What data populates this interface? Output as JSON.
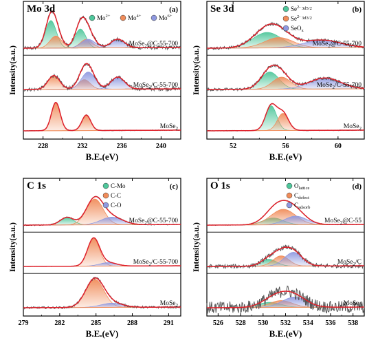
{
  "chart_data": [
    {
      "type": "line",
      "id": "a",
      "title": "Mo 3d",
      "letter": "(a)",
      "xlabel": "B.E.(eV)",
      "ylabel": "Intensity(a.u.)",
      "xlim": [
        226,
        242
      ],
      "xticks": [
        228,
        232,
        236,
        240
      ],
      "legend": [
        {
          "label": "Mo",
          "sup": "2+",
          "sub": "",
          "color": "#4fc79b"
        },
        {
          "label": "Mo",
          "sup": "4+",
          "sub": "",
          "color": "#f08c5a"
        },
        {
          "label": "Mo",
          "sup": "6+",
          "sub": "",
          "color": "#8f99e0"
        }
      ],
      "traces": [
        {
          "label": "MoSe",
          "sub": "2",
          "suffix": "@C-55-700",
          "base": 2.0,
          "noise": 0.05,
          "peaks": [
            {
              "center": 228.8,
              "height": 0.8,
              "width": 0.55,
              "color": "#4fc79b"
            },
            {
              "center": 231.8,
              "height": 0.55,
              "width": 0.55,
              "color": "#4fc79b"
            },
            {
              "center": 229.3,
              "height": 0.35,
              "width": 0.6,
              "color": "#f08c5a"
            },
            {
              "center": 232.4,
              "height": 0.25,
              "width": 0.6,
              "color": "#f08c5a"
            },
            {
              "center": 232.6,
              "height": 0.25,
              "width": 0.7,
              "color": "#8f99e0"
            },
            {
              "center": 235.6,
              "height": 0.25,
              "width": 0.7,
              "color": "#8f99e0"
            }
          ]
        },
        {
          "label": "MoSe",
          "sub": "2",
          "suffix": "/C-55-700",
          "base": 1.0,
          "noise": 0.05,
          "peaks": [
            {
              "center": 229.1,
              "height": 0.4,
              "width": 0.6,
              "color": "#f08c5a"
            },
            {
              "center": 232.2,
              "height": 0.28,
              "width": 0.6,
              "color": "#f08c5a"
            },
            {
              "center": 232.6,
              "height": 0.5,
              "width": 0.7,
              "color": "#8f99e0"
            },
            {
              "center": 235.6,
              "height": 0.35,
              "width": 0.7,
              "color": "#8f99e0"
            }
          ]
        },
        {
          "label": "MoSe",
          "sub": "2",
          "suffix": "",
          "base": 0.0,
          "noise": 0.01,
          "peaks": [
            {
              "center": 229.3,
              "height": 0.82,
              "width": 0.45,
              "color": "#f08c5a"
            },
            {
              "center": 232.4,
              "height": 0.45,
              "width": 0.45,
              "color": "#f08c5a"
            }
          ]
        }
      ]
    },
    {
      "type": "line",
      "id": "b",
      "title": "Se 3d",
      "letter": "(b)",
      "xlabel": "B.E.(eV)",
      "ylabel": "Intensity(a.u.)",
      "xlim": [
        50,
        62
      ],
      "xticks": [
        52,
        56,
        60
      ],
      "legend": [
        {
          "label": "Se",
          "sup": "2-",
          "sub": " 3d5/2",
          "color": "#4fc79b"
        },
        {
          "label": "Se",
          "sup": "2-",
          "sub": " 3d3/2",
          "color": "#f08c5a"
        },
        {
          "label": "SeO",
          "sup": "",
          "sub": "x",
          "color": "#8f99e0"
        }
      ],
      "traces": [
        {
          "label": "MoSe",
          "sub": "2",
          "suffix": "@C-55-700",
          "base": 2.0,
          "noise": 0.04,
          "peaks": [
            {
              "center": 54.6,
              "height": 0.45,
              "width": 1.1,
              "color": "#4fc79b"
            },
            {
              "center": 55.5,
              "height": 0.3,
              "width": 1.1,
              "color": "#f08c5a"
            },
            {
              "center": 58.8,
              "height": 0.22,
              "width": 1.4,
              "color": "#8f99e0"
            }
          ]
        },
        {
          "label": "MoSe",
          "sub": "2",
          "suffix": "/C-55-700",
          "base": 1.0,
          "noise": 0.04,
          "peaks": [
            {
              "center": 54.8,
              "height": 0.5,
              "width": 0.7,
              "color": "#4fc79b"
            },
            {
              "center": 55.7,
              "height": 0.35,
              "width": 0.7,
              "color": "#f08c5a"
            },
            {
              "center": 59.0,
              "height": 0.32,
              "width": 1.2,
              "color": "#8f99e0"
            }
          ]
        },
        {
          "label": "MoSe",
          "sub": "2",
          "suffix": "",
          "base": 0.0,
          "noise": 0.01,
          "peaks": [
            {
              "center": 54.9,
              "height": 0.72,
              "width": 0.42,
              "color": "#4fc79b"
            },
            {
              "center": 55.8,
              "height": 0.5,
              "width": 0.42,
              "color": "#f08c5a"
            }
          ]
        }
      ]
    },
    {
      "type": "line",
      "id": "c",
      "title": "C 1s",
      "letter": "(c)",
      "xlabel": "B.E.(eV)",
      "ylabel": "Intensity(a.u.)",
      "xlim": [
        279,
        292
      ],
      "xticks": [
        279,
        282,
        285,
        288,
        291
      ],
      "legend": [
        {
          "label": "C-Mo",
          "sup": "",
          "sub": "",
          "color": "#4fc79b"
        },
        {
          "label": "C-C",
          "sup": "",
          "sub": "",
          "color": "#f08c5a"
        },
        {
          "label": "C-O",
          "sup": "",
          "sub": "",
          "color": "#8f99e0"
        }
      ],
      "traces": [
        {
          "label": "MoSe",
          "sub": "2",
          "suffix": "@C-55-700",
          "base": 2.0,
          "noise": 0.015,
          "peaks": [
            {
              "center": 282.6,
              "height": 0.22,
              "width": 0.55,
              "color": "#4fc79b"
            },
            {
              "center": 284.9,
              "height": 0.75,
              "width": 0.7,
              "color": "#f08c5a"
            },
            {
              "center": 286.3,
              "height": 0.22,
              "width": 0.9,
              "color": "#8f99e0"
            }
          ]
        },
        {
          "label": "MoSe",
          "sub": "2",
          "suffix": "/C-55-700",
          "base": 1.0,
          "noise": 0.005,
          "peaks": [
            {
              "center": 284.8,
              "height": 0.8,
              "width": 0.5,
              "color": "#f08c5a"
            },
            {
              "center": 286.0,
              "height": 0.1,
              "width": 0.7,
              "color": "#8f99e0"
            }
          ]
        },
        {
          "label": "MoSe",
          "sub": "2",
          "suffix": "",
          "base": 0.0,
          "noise": 0.03,
          "peaks": [
            {
              "center": 284.9,
              "height": 0.82,
              "width": 0.75,
              "color": "#f08c5a"
            },
            {
              "center": 286.3,
              "height": 0.12,
              "width": 0.9,
              "color": "#8f99e0"
            }
          ]
        }
      ]
    },
    {
      "type": "line",
      "id": "d",
      "title": "O 1s",
      "letter": "(d)",
      "xlabel": "B.E.(eV)",
      "ylabel": "Intensity(a.u.)",
      "xlim": [
        525,
        539
      ],
      "xticks": [
        526,
        528,
        530,
        532,
        534,
        536,
        538
      ],
      "legend": [
        {
          "label": "O",
          "sup": "",
          "sub": "lattice",
          "color": "#4fc79b"
        },
        {
          "label": "C",
          "sup": "",
          "sub": "defect",
          "color": "#f08c5a"
        },
        {
          "label": "C",
          "sup": "",
          "sub": "adsorb",
          "color": "#8f99e0"
        }
      ],
      "traces": [
        {
          "label": "MoSe",
          "sub": "2",
          "suffix": "@C-55",
          "base": 2.0,
          "noise": 0.01,
          "peaks": [
            {
              "center": 530.9,
              "height": 0.2,
              "width": 0.9,
              "color": "#4fc79b"
            },
            {
              "center": 531.8,
              "height": 0.45,
              "width": 1.1,
              "color": "#f08c5a"
            },
            {
              "center": 532.9,
              "height": 0.25,
              "width": 1.0,
              "color": "#8f99e0"
            }
          ]
        },
        {
          "label": "MoSe",
          "sub": "2",
          "suffix": "/C",
          "base": 1.0,
          "noise": 0.06,
          "peaks": [
            {
              "center": 530.5,
              "height": 0.2,
              "width": 0.7,
              "color": "#4fc79b"
            },
            {
              "center": 531.6,
              "height": 0.3,
              "width": 0.7,
              "color": "#f08c5a"
            },
            {
              "center": 532.7,
              "height": 0.4,
              "width": 0.8,
              "color": "#8f99e0"
            }
          ]
        },
        {
          "label": "MoSe",
          "sub": "2",
          "suffix": "",
          "base": 0.0,
          "noise": 0.18,
          "peaks": [
            {
              "center": 530.6,
              "height": 0.15,
              "width": 1.0,
              "color": "#4fc79b"
            },
            {
              "center": 531.6,
              "height": 0.2,
              "width": 1.0,
              "color": "#f08c5a"
            },
            {
              "center": 532.8,
              "height": 0.3,
              "width": 1.1,
              "color": "#8f99e0"
            }
          ]
        }
      ]
    }
  ]
}
